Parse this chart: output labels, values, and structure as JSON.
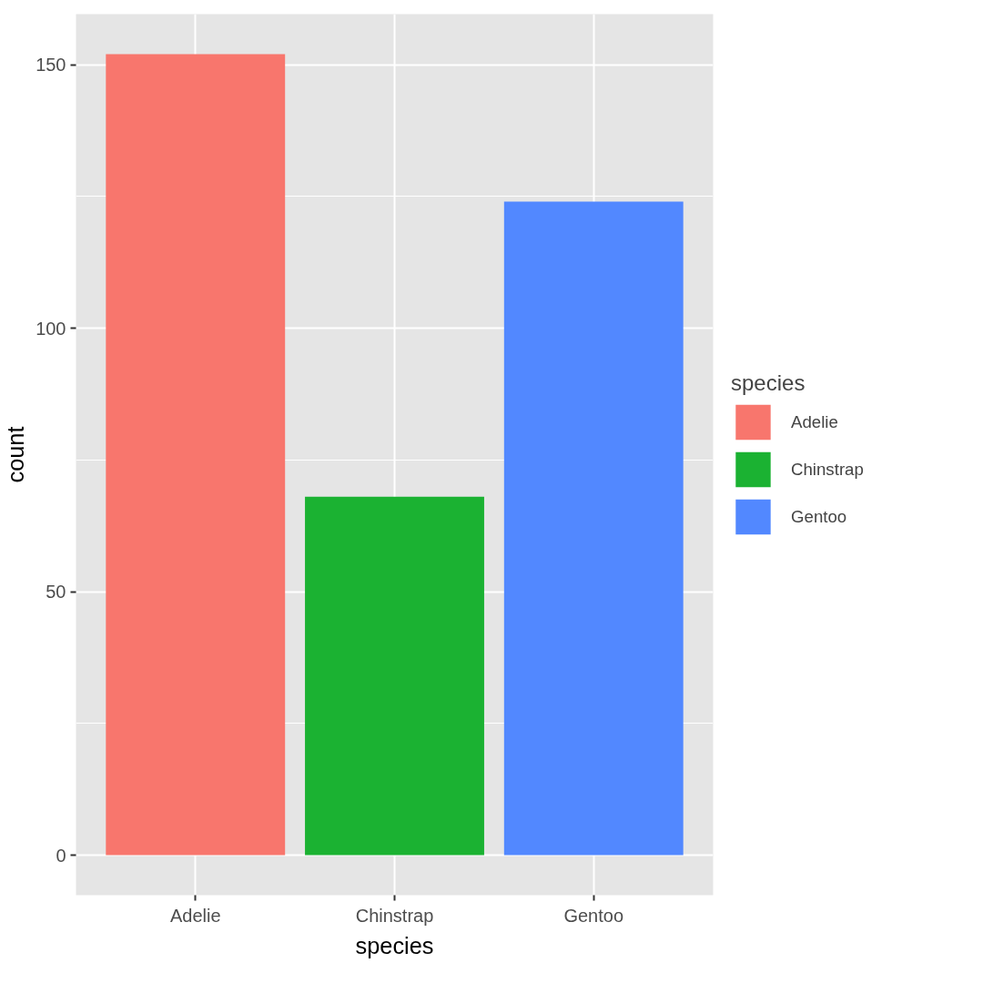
{
  "chart_data": {
    "type": "bar",
    "xlabel": "species",
    "ylabel": "count",
    "legend_title": "species",
    "stacked": true,
    "categories": [
      "Adelie",
      "Chinstrap",
      "Gentoo"
    ],
    "series": [
      {
        "name": "Adelie",
        "color": "#f8766d",
        "values": [
          152,
          null,
          null
        ]
      },
      {
        "name": "Chinstrap",
        "color": "#1bb232",
        "values": [
          null,
          68,
          null
        ]
      },
      {
        "name": "Gentoo",
        "color": "#5288ff",
        "values": [
          null,
          null,
          124
        ]
      }
    ],
    "ylim": [
      -7.6,
      159.6
    ],
    "yticks": [
      0,
      50,
      100,
      150
    ],
    "grid": true,
    "legend": "right"
  }
}
